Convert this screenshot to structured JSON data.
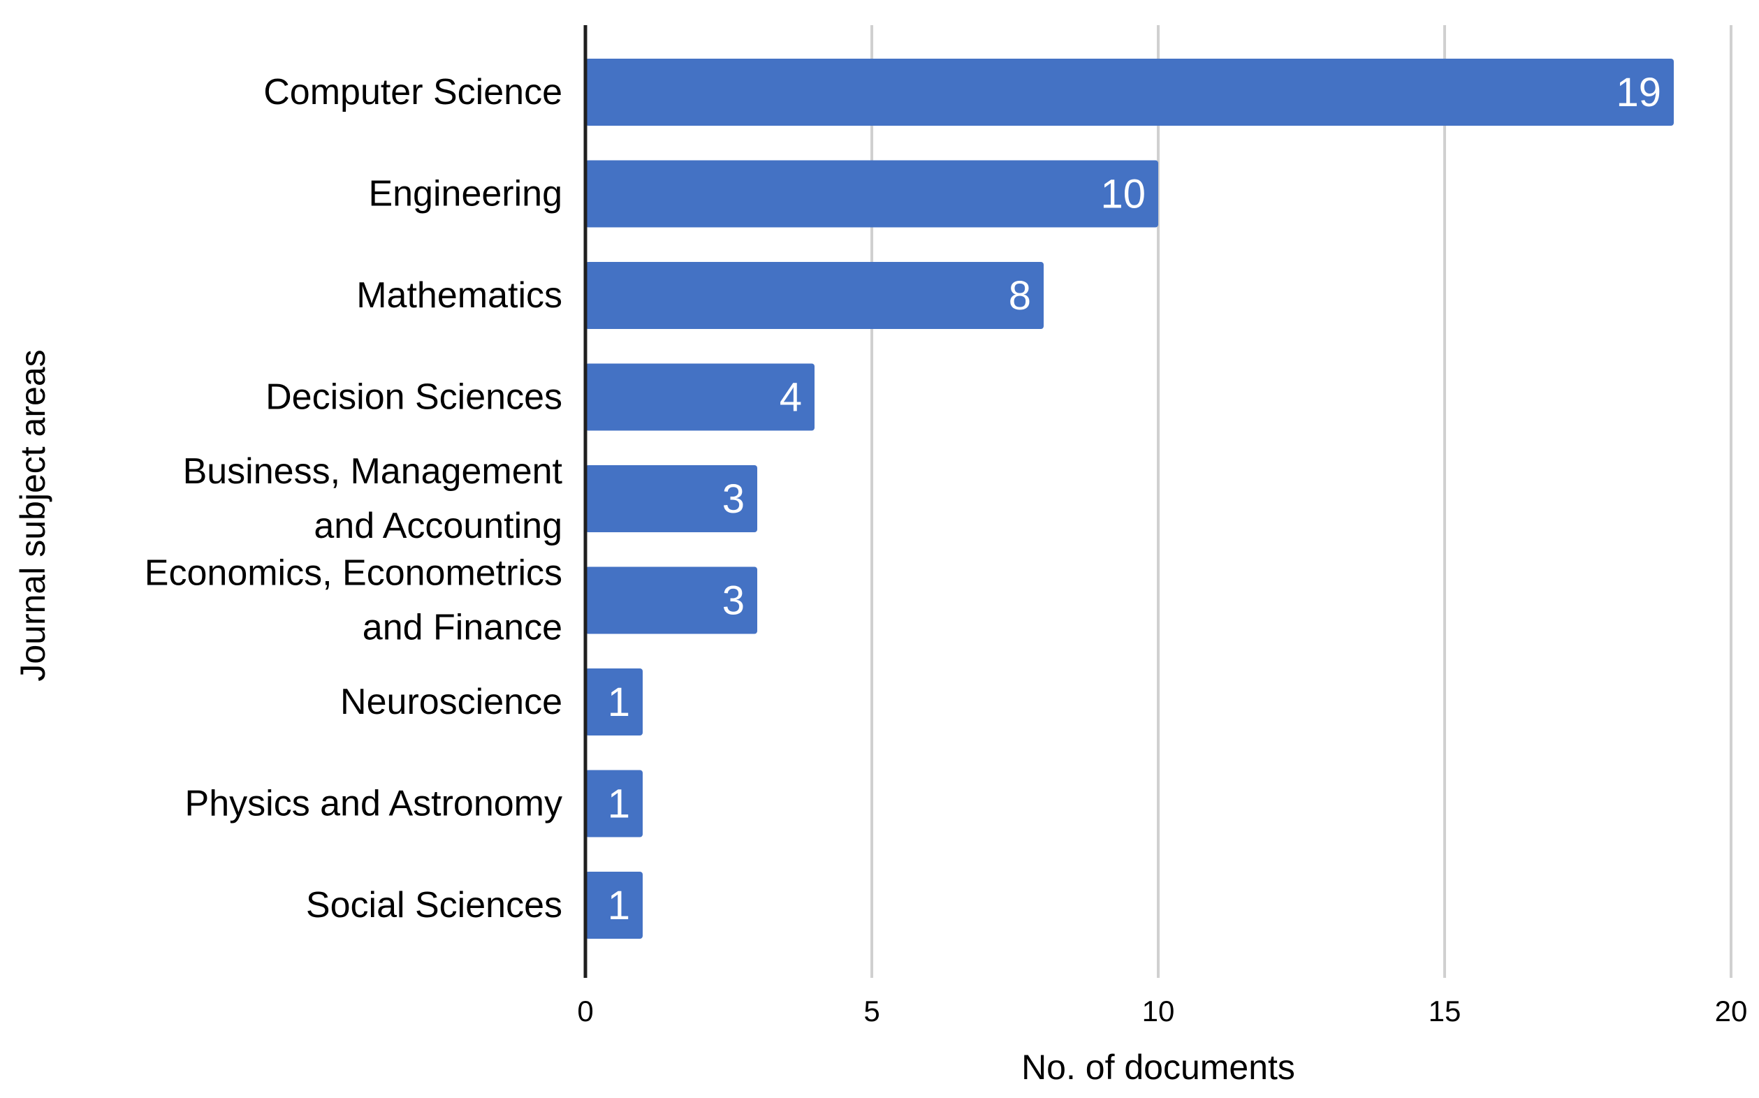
{
  "chart_data": {
    "type": "bar",
    "orientation": "horizontal",
    "categories": [
      "Computer Science",
      "Engineering",
      "Mathematics",
      "Decision Sciences",
      "Business, Management and Accounting",
      "Economics, Econometrics and Finance",
      "Neuroscience",
      "Physics and Astronomy",
      "Social Sciences"
    ],
    "category_label_lines": [
      [
        "Computer Science"
      ],
      [
        "Engineering"
      ],
      [
        "Mathematics"
      ],
      [
        "Decision Sciences"
      ],
      [
        "Business, Management",
        "and Accounting"
      ],
      [
        "Economics, Econometrics",
        "and Finance"
      ],
      [
        "Neuroscience"
      ],
      [
        "Physics and Astronomy"
      ],
      [
        "Social Sciences"
      ]
    ],
    "values": [
      19,
      10,
      8,
      4,
      3,
      3,
      1,
      1,
      1
    ],
    "data_labels": [
      "19",
      "10",
      "8",
      "4",
      "3",
      "3",
      "1",
      "1",
      "1"
    ],
    "title": "",
    "xlabel": "No. of documents",
    "ylabel": "Journal subject areas",
    "xlim": [
      0,
      20
    ],
    "xticks": [
      0,
      5,
      10,
      15,
      20
    ],
    "xtick_labels": [
      "0",
      "5",
      "10",
      "15",
      "20"
    ],
    "grid": "vertical",
    "legend": "none",
    "colors": {
      "bar": "#4472C4",
      "grid": "#D0D0D0",
      "axis": "#1F1F1F",
      "text": "#000000",
      "data_label": "#FFFFFF"
    }
  }
}
